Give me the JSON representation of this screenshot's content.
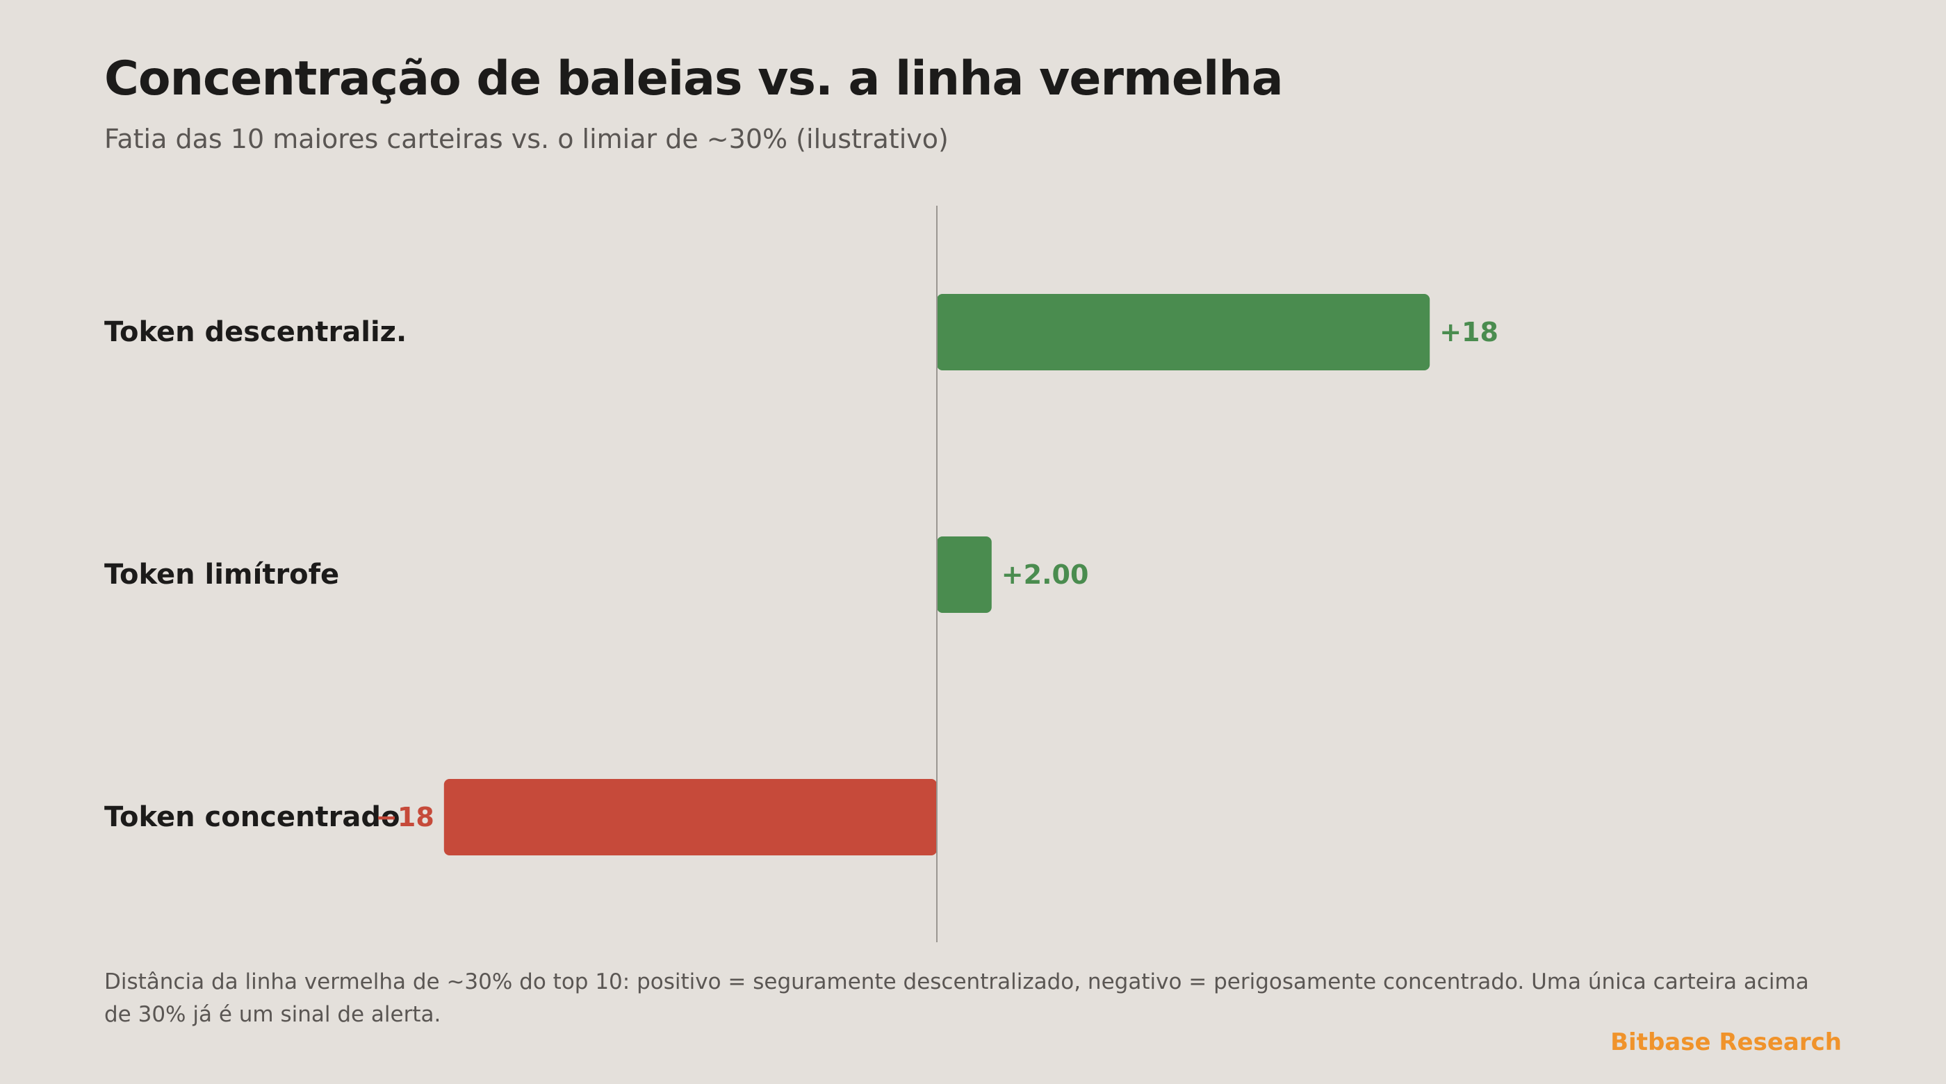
{
  "header": {
    "title": "Concentração de baleias vs. a linha vermelha",
    "subtitle": "Fatia das 10 maiores carteiras vs. o limiar de ~30% (ilustrativo)"
  },
  "chart_data": {
    "type": "bar",
    "orientation": "horizontal",
    "categories": [
      "Token descentraliz.",
      "Token limítrofe",
      "Token concentrado"
    ],
    "values": [
      18,
      2.0,
      -18
    ],
    "value_labels": [
      "+18",
      "+2.00",
      "−18"
    ],
    "xlim": [
      -18,
      18
    ],
    "baseline": 0,
    "grid": false,
    "legend": "none",
    "colors": {
      "positive": "#4a8c4f",
      "negative": "#c64a3a",
      "baseline": "#9a9691"
    }
  },
  "footer": {
    "note": "Distância da linha vermelha de ~30% do top 10: positivo = seguramente descentralizado, negativo = perigosamente concentrado. Uma única carteira acima de 30% já é um sinal de alerta.",
    "brand": "Bitbase Research"
  }
}
